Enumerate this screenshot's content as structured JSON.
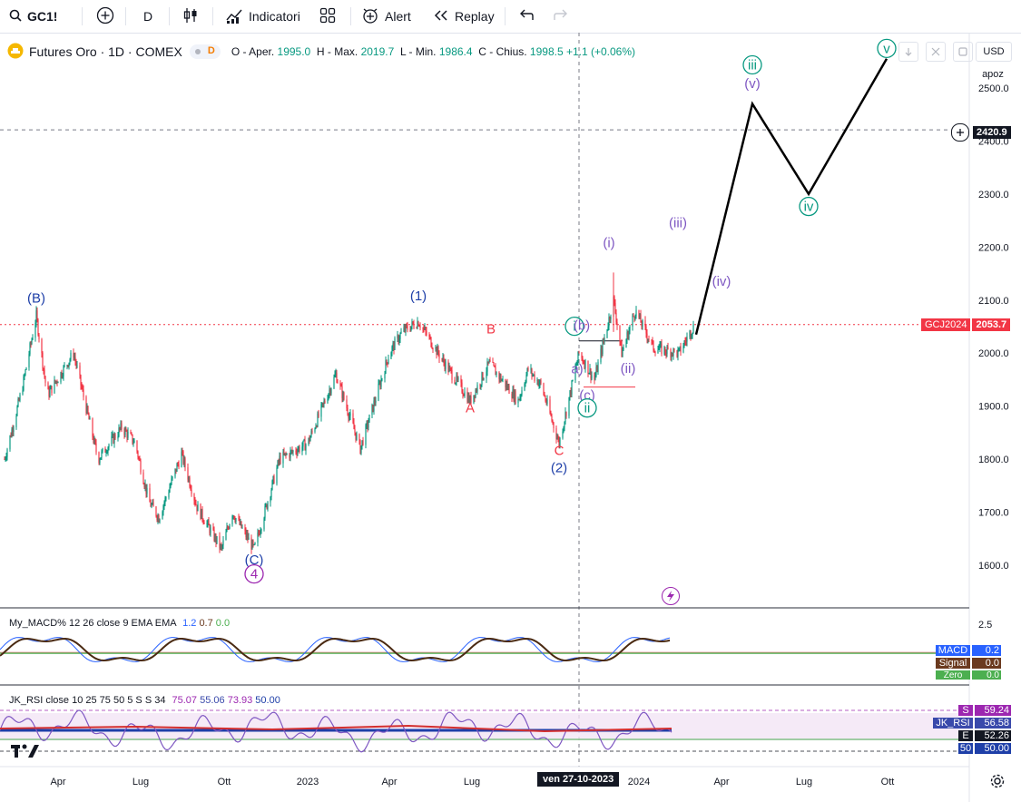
{
  "toolbar": {
    "symbol": "GC1!",
    "interval": "D",
    "indicators_label": "Indicatori",
    "alert_label": "Alert",
    "replay_label": "Replay"
  },
  "legend": {
    "title": "Futures Oro · 1D · COMEX",
    "badge": "D",
    "open_label": "O - Aper.",
    "open": "1995.0",
    "high_label": "H - Max.",
    "high": "2019.7",
    "low_label": "L - Min.",
    "low": "1986.4",
    "close_label": "C - Chius.",
    "close": "1998.5",
    "change": "+1.1 (+0.06%)"
  },
  "right_panel": {
    "currency": "USD",
    "scale_mode": "apoz"
  },
  "price_tags": {
    "crosshair": "2420.9",
    "symbol_name": "GCJ2024",
    "symbol_price": "2053.7"
  },
  "crosshair_date": "ven 27-10-2023",
  "colors": {
    "up": "#089981",
    "down": "#f23645",
    "wave_blue": "#2962ff",
    "wave_purple": "#7e57c2",
    "wave_red": "#f23645",
    "wave_green": "#089981",
    "projection": "#000000"
  },
  "wave_labels": [
    {
      "text": "(B)",
      "color": "#1e3fa8"
    },
    {
      "text": "(C)",
      "color": "#1e3fa8"
    },
    {
      "text": "4",
      "color": "#9c27b0"
    },
    {
      "text": "(1)",
      "color": "#1e3fa8"
    },
    {
      "text": "A",
      "color": "#f23645"
    },
    {
      "text": "B",
      "color": "#f23645"
    },
    {
      "text": "C",
      "color": "#f23645"
    },
    {
      "text": "(2)",
      "color": "#1e3fa8"
    },
    {
      "text": "i",
      "color": "#089981"
    },
    {
      "text": "(b)",
      "color": "#7e57c2"
    },
    {
      "text": "a)",
      "color": "#7e57c2"
    },
    {
      "text": "(c)",
      "color": "#7e57c2"
    },
    {
      "text": "ii",
      "color": "#089981"
    },
    {
      "text": "(i)",
      "color": "#7e57c2"
    },
    {
      "text": "(ii)",
      "color": "#7e57c2"
    },
    {
      "text": "(iii)",
      "color": "#7e57c2"
    },
    {
      "text": "(iv)",
      "color": "#7e57c2"
    },
    {
      "text": "(v)",
      "color": "#7e57c2"
    },
    {
      "text": "iii",
      "color": "#089981"
    },
    {
      "text": "iv",
      "color": "#089981"
    },
    {
      "text": "v",
      "color": "#089981"
    }
  ],
  "chart_data": [
    {
      "type": "candlestick",
      "title": "Futures Oro · 1D · COMEX",
      "ylim": [
        1530,
        2550
      ],
      "y_ticks": [
        "1600.0",
        "1700.0",
        "1800.0",
        "1900.0",
        "2000.0",
        "2100.0",
        "2200.0",
        "2300.0",
        "2400.0",
        "2500.0"
      ],
      "x_ticks": [
        "Apr",
        "Lug",
        "Ott",
        "2023",
        "Apr",
        "Lug",
        "2024",
        "Apr",
        "Lug",
        "Ott"
      ],
      "price_path": [
        [
          "2022-02-01",
          1800
        ],
        [
          "2022-02-20",
          1930
        ],
        [
          "2022-03-08",
          2070
        ],
        [
          "2022-03-20",
          1920
        ],
        [
          "2022-04-18",
          2000
        ],
        [
          "2022-05-15",
          1800
        ],
        [
          "2022-06-10",
          1860
        ],
        [
          "2022-06-25",
          1830
        ],
        [
          "2022-07-10",
          1720
        ],
        [
          "2022-07-21",
          1690
        ],
        [
          "2022-08-15",
          1810
        ],
        [
          "2022-09-01",
          1710
        ],
        [
          "2022-09-28",
          1630
        ],
        [
          "2022-10-10",
          1700
        ],
        [
          "2022-11-03",
          1630
        ],
        [
          "2022-12-01",
          1800
        ],
        [
          "2023-01-01",
          1830
        ],
        [
          "2023-02-01",
          1960
        ],
        [
          "2023-02-28",
          1820
        ],
        [
          "2023-04-01",
          2000
        ],
        [
          "2023-04-15",
          2040
        ],
        [
          "2023-05-03",
          2060
        ],
        [
          "2023-06-01",
          1980
        ],
        [
          "2023-06-29",
          1910
        ],
        [
          "2023-07-20",
          1980
        ],
        [
          "2023-08-21",
          1910
        ],
        [
          "2023-09-01",
          1970
        ],
        [
          "2023-09-15",
          1940
        ],
        [
          "2023-10-05",
          1830
        ],
        [
          "2023-10-27",
          2000
        ],
        [
          "2023-11-13",
          1950
        ],
        [
          "2023-12-04",
          2100
        ],
        [
          "2023-12-13",
          2000
        ],
        [
          "2023-12-28",
          2080
        ],
        [
          "2024-01-17",
          2010
        ],
        [
          "2024-02-14",
          2000
        ],
        [
          "2024-03-01",
          2050
        ]
      ],
      "projection": [
        [
          "2024-03-04",
          2035
        ],
        [
          "2024-05-05",
          2470
        ],
        [
          "2024-07-06",
          2300
        ],
        [
          "2024-09-30",
          2555
        ]
      ],
      "last_price": 2053.7,
      "crosshair_price": 2420.9,
      "marked_level": 2053.7
    },
    {
      "type": "line",
      "title": "My_MACD% 12 26 close 9 EMA EMA",
      "legend_values": [
        "1.2",
        "0.7",
        "0.0"
      ],
      "series": [
        {
          "name": "MACD",
          "value": "0.2",
          "color": "#2962ff"
        },
        {
          "name": "Signal",
          "value": "0.0",
          "color": "#6b3a1f"
        },
        {
          "name": "Zero Line",
          "value": "0.0",
          "color": "#4caf50"
        }
      ],
      "y_ticks": [
        "2.5"
      ]
    },
    {
      "type": "line",
      "title": "JK_RSI close 10 25 75 50 5 S S 34",
      "legend_values": [
        "75.07",
        "55.06",
        "73.93",
        "50.00"
      ],
      "series": [
        {
          "name": "S",
          "value": "59.24",
          "color": "#9c27b0"
        },
        {
          "name": "JK_RSI",
          "value": "56.58",
          "color": "#3949ab"
        },
        {
          "name": "E",
          "value": "52.26",
          "color": "#131722"
        },
        {
          "name": "50",
          "value": "50.00",
          "color": "#1e3fa8"
        }
      ]
    }
  ]
}
